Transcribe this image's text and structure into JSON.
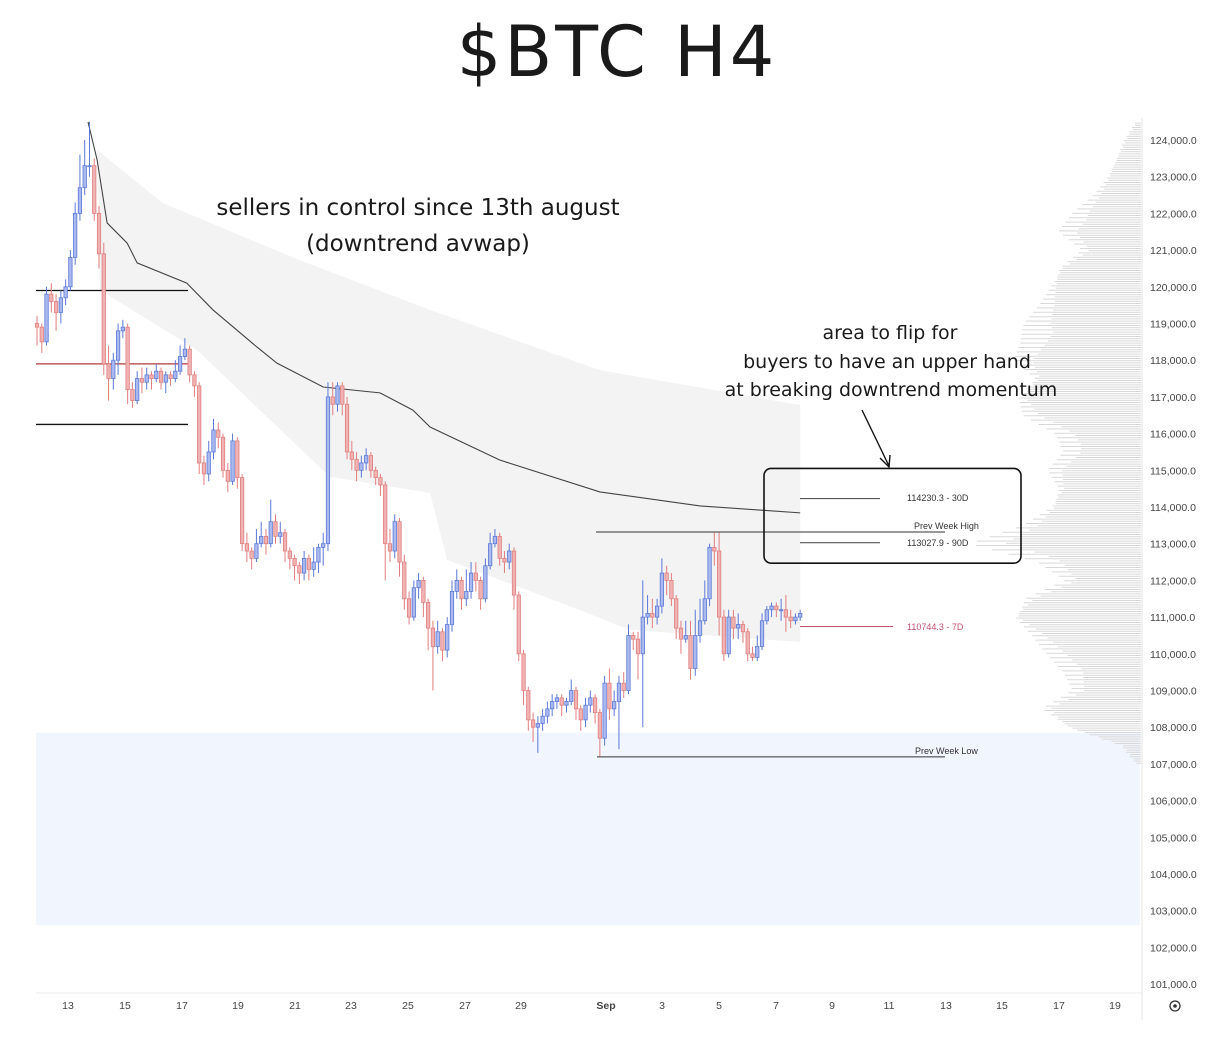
{
  "title": "$BTC H4",
  "annotations": {
    "sellers_line1": "sellers in control since 13th august",
    "sellers_line2": "(downtrend avwap)",
    "flip_line1": "area to flip for",
    "flip_line2": "buyers to have an upper hand",
    "flip_line3": "at breaking downtrend momentum"
  },
  "chart_data": {
    "type": "candlestick",
    "timeframe": "H4",
    "ylim": [
      100600,
      124800
    ],
    "y_ticks": [
      "124,000.0",
      "123,000.0",
      "122,000.0",
      "121,000.0",
      "120,000.0",
      "119,000.0",
      "118,000.0",
      "117,000.0",
      "116,000.0",
      "115,000.0",
      "114,000.0",
      "113,000.0",
      "112,000.0",
      "111,000.0",
      "110,000.0",
      "109,000.0",
      "108,000.0",
      "107,000.0",
      "106,000.0",
      "105,000.0",
      "104,000.0",
      "103,000.0",
      "102,000.0",
      "101,000.0"
    ],
    "x_ticks": [
      "13",
      "15",
      "17",
      "19",
      "21",
      "23",
      "25",
      "27",
      "29",
      "Sep",
      "3",
      "5",
      "7",
      "9",
      "11",
      "13",
      "15",
      "17",
      "19"
    ],
    "colors": {
      "up": "#5b78d6",
      "up_fill": "#aab9ee",
      "down": "#e07e7e",
      "down_fill": "#f0b3b3",
      "avwap": "#444444",
      "band": "#f3f3f3",
      "zone": "#f1f5fd",
      "seven_day": "#c0506e"
    },
    "candles_ohlc": [
      [
        119000,
        119200,
        118400,
        118900
      ],
      [
        118900,
        119000,
        118200,
        118500
      ],
      [
        118500,
        120000,
        118400,
        119800
      ],
      [
        119800,
        120100,
        119300,
        119600
      ],
      [
        119600,
        119800,
        118800,
        119300
      ],
      [
        119300,
        119900,
        119000,
        119700
      ],
      [
        119700,
        120200,
        119500,
        120000
      ],
      [
        120000,
        121000,
        119900,
        120800
      ],
      [
        120800,
        122300,
        120600,
        122000
      ],
      [
        122000,
        123600,
        121800,
        122700
      ],
      [
        122700,
        124000,
        122500,
        123300
      ],
      [
        123300,
        124500,
        123000,
        123300
      ],
      [
        123300,
        123500,
        121800,
        122000
      ],
      [
        122000,
        122200,
        120500,
        120900
      ],
      [
        120900,
        121200,
        117600,
        117900
      ],
      [
        117900,
        118400,
        116900,
        117500
      ],
      [
        117500,
        118200,
        117200,
        118000
      ],
      [
        118000,
        119000,
        117600,
        118800
      ],
      [
        118800,
        119100,
        118600,
        118900
      ],
      [
        118900,
        119000,
        116800,
        117200
      ],
      [
        117200,
        117400,
        116700,
        116900
      ],
      [
        116900,
        117700,
        116800,
        117500
      ],
      [
        117500,
        117800,
        117100,
        117400
      ],
      [
        117400,
        117800,
        117200,
        117600
      ],
      [
        117600,
        117700,
        117200,
        117500
      ],
      [
        117500,
        117900,
        117400,
        117700
      ],
      [
        117700,
        117800,
        117200,
        117400
      ],
      [
        117400,
        117700,
        117100,
        117600
      ],
      [
        117600,
        117700,
        117300,
        117500
      ],
      [
        117500,
        118000,
        117400,
        117700
      ],
      [
        117700,
        118400,
        117600,
        118100
      ],
      [
        118100,
        118600,
        118000,
        118300
      ],
      [
        118300,
        118400,
        117400,
        117600
      ],
      [
        117600,
        117700,
        117000,
        117300
      ],
      [
        117300,
        117400,
        114900,
        115200
      ],
      [
        115200,
        115400,
        114600,
        114900
      ],
      [
        114900,
        115800,
        114700,
        115500
      ],
      [
        115500,
        116400,
        115300,
        116100
      ],
      [
        116100,
        116300,
        115600,
        115900
      ],
      [
        115900,
        116000,
        114800,
        115000
      ],
      [
        115000,
        115200,
        114400,
        114700
      ],
      [
        114700,
        116000,
        114600,
        115800
      ],
      [
        115800,
        115900,
        114500,
        114800
      ],
      [
        114800,
        114900,
        112800,
        113000
      ],
      [
        113000,
        113300,
        112500,
        112800
      ],
      [
        112800,
        112900,
        112300,
        112600
      ],
      [
        112600,
        113400,
        112500,
        113000
      ],
      [
        113000,
        113600,
        112900,
        113200
      ],
      [
        113200,
        113400,
        112700,
        113000
      ],
      [
        113000,
        114200,
        112900,
        113600
      ],
      [
        113600,
        113800,
        113000,
        113200
      ],
      [
        113200,
        113600,
        113000,
        113300
      ],
      [
        113300,
        113400,
        112500,
        112800
      ],
      [
        112800,
        112900,
        112300,
        112600
      ],
      [
        112600,
        112700,
        112000,
        112400
      ],
      [
        112400,
        112500,
        111900,
        112200
      ],
      [
        112200,
        112800,
        112000,
        112600
      ],
      [
        112600,
        112700,
        112000,
        112300
      ],
      [
        112300,
        112900,
        112100,
        112500
      ],
      [
        112500,
        113000,
        112200,
        112900
      ],
      [
        112900,
        113300,
        112400,
        113000
      ],
      [
        113000,
        117400,
        112800,
        117000
      ],
      [
        117000,
        117400,
        116500,
        116800
      ],
      [
        116800,
        117400,
        116600,
        117300
      ],
      [
        117300,
        117400,
        116500,
        116800
      ],
      [
        116800,
        117000,
        115300,
        115500
      ],
      [
        115500,
        115800,
        115000,
        115300
      ],
      [
        115300,
        115500,
        114700,
        115000
      ],
      [
        115000,
        115400,
        114800,
        115200
      ],
      [
        115200,
        115600,
        115000,
        115400
      ],
      [
        115400,
        115500,
        114800,
        115000
      ],
      [
        115000,
        115100,
        114600,
        114800
      ],
      [
        114800,
        114900,
        114300,
        114600
      ],
      [
        114600,
        114700,
        112000,
        113000
      ],
      [
        113000,
        113400,
        112500,
        112800
      ],
      [
        112800,
        113800,
        112600,
        113600
      ],
      [
        113600,
        113700,
        112100,
        112500
      ],
      [
        112500,
        112700,
        111200,
        111500
      ],
      [
        111500,
        111700,
        110800,
        111000
      ],
      [
        111000,
        112000,
        110900,
        111800
      ],
      [
        111800,
        112200,
        111500,
        112000
      ],
      [
        112000,
        112100,
        111000,
        111400
      ],
      [
        111400,
        111500,
        110100,
        110700
      ],
      [
        110700,
        110900,
        109000,
        110200
      ],
      [
        110200,
        110900,
        110000,
        110600
      ],
      [
        110600,
        110700,
        109800,
        110100
      ],
      [
        110100,
        111000,
        109900,
        110800
      ],
      [
        110800,
        112000,
        110600,
        111700
      ],
      [
        111700,
        112300,
        111500,
        112000
      ],
      [
        112000,
        112100,
        111200,
        111500
      ],
      [
        111500,
        112300,
        111300,
        111700
      ],
      [
        111700,
        112500,
        111500,
        112200
      ],
      [
        112200,
        112500,
        111700,
        112000
      ],
      [
        112000,
        112100,
        111200,
        111500
      ],
      [
        111500,
        112600,
        111400,
        112400
      ],
      [
        112400,
        113300,
        112300,
        113000
      ],
      [
        113000,
        113400,
        112900,
        113200
      ],
      [
        113200,
        113300,
        112400,
        112600
      ],
      [
        112600,
        112800,
        112200,
        112500
      ],
      [
        112500,
        113000,
        112300,
        112800
      ],
      [
        112800,
        112900,
        111200,
        111600
      ],
      [
        111600,
        111700,
        109800,
        110000
      ],
      [
        110000,
        110100,
        108600,
        109000
      ],
      [
        109000,
        109100,
        107900,
        108200
      ],
      [
        108200,
        108400,
        107600,
        108000
      ],
      [
        108000,
        108300,
        107300,
        108100
      ],
      [
        108100,
        108500,
        107900,
        108300
      ],
      [
        108300,
        108700,
        108100,
        108500
      ],
      [
        108500,
        108900,
        108300,
        108700
      ],
      [
        108700,
        108900,
        108500,
        108800
      ],
      [
        108800,
        108900,
        108300,
        108600
      ],
      [
        108600,
        108800,
        108400,
        108700
      ],
      [
        108700,
        109300,
        108600,
        109000
      ],
      [
        109000,
        109100,
        108200,
        108500
      ],
      [
        108500,
        108600,
        107900,
        108200
      ],
      [
        108200,
        108800,
        108000,
        108600
      ],
      [
        108600,
        109000,
        108400,
        108800
      ],
      [
        108800,
        108900,
        108100,
        108400
      ],
      [
        108400,
        108500,
        107200,
        107700
      ],
      [
        107700,
        109400,
        107500,
        109200
      ],
      [
        109200,
        109600,
        108200,
        108500
      ],
      [
        108500,
        109000,
        108300,
        108700
      ],
      [
        108700,
        109400,
        107400,
        109200
      ],
      [
        109200,
        109500,
        108800,
        109000
      ],
      [
        109000,
        110800,
        108900,
        110500
      ],
      [
        110500,
        110600,
        110100,
        110400
      ],
      [
        110400,
        110600,
        109300,
        110000
      ],
      [
        110000,
        112000,
        108000,
        111000
      ],
      [
        111000,
        111600,
        110800,
        111100
      ],
      [
        111100,
        111500,
        110700,
        111000
      ],
      [
        111000,
        111500,
        110800,
        111300
      ],
      [
        111300,
        112600,
        111100,
        112200
      ],
      [
        112200,
        112400,
        111600,
        112000
      ],
      [
        112000,
        112200,
        111300,
        111500
      ],
      [
        111500,
        111600,
        110400,
        110700
      ],
      [
        110700,
        110900,
        110000,
        110400
      ],
      [
        110400,
        110900,
        110300,
        110500
      ],
      [
        110500,
        110900,
        109300,
        109600
      ],
      [
        109600,
        111200,
        109400,
        110500
      ],
      [
        110500,
        111500,
        110300,
        110900
      ],
      [
        110900,
        112000,
        110800,
        111500
      ],
      [
        111500,
        113000,
        111300,
        112900
      ],
      [
        112900,
        113300,
        112400,
        112800
      ],
      [
        112800,
        113300,
        110500,
        111000
      ],
      [
        111000,
        111200,
        109800,
        110000
      ],
      [
        110000,
        111200,
        109900,
        111000
      ],
      [
        111000,
        111200,
        110400,
        110700
      ],
      [
        110700,
        111100,
        110400,
        110800
      ],
      [
        110800,
        110900,
        110300,
        110600
      ],
      [
        110600,
        110700,
        109800,
        110000
      ],
      [
        110000,
        110200,
        109800,
        109900
      ],
      [
        109900,
        110500,
        109800,
        110200
      ],
      [
        110200,
        111100,
        110100,
        110900
      ],
      [
        110900,
        111300,
        110800,
        111200
      ],
      [
        111200,
        111400,
        111000,
        111300
      ],
      [
        111300,
        111400,
        111000,
        111200
      ],
      [
        111200,
        111500,
        110900,
        111200
      ],
      [
        111200,
        111600,
        110600,
        111000
      ],
      [
        111000,
        111200,
        110700,
        110900
      ],
      [
        110900,
        111100,
        110800,
        111000
      ],
      [
        111000,
        111200,
        110900,
        111100
      ]
    ],
    "avwap": {
      "candle_index": [
        10.7,
        12.6,
        14.7,
        18.9,
        21,
        31.4,
        36.9,
        46.1,
        50.3,
        60,
        71.9,
        78.8,
        82.4,
        97,
        118,
        139,
        160
      ],
      "price": [
        124490,
        123460,
        121740,
        121190,
        120650,
        120100,
        119370,
        118360,
        117920,
        117270,
        117110,
        116640,
        116180,
        115280,
        114410,
        114030,
        113840
      ]
    },
    "avwap_band": {
      "upper": {
        "candle_index": [
          12.6,
          26.4,
          55,
          82.4,
          118,
          160
        ],
        "price": [
          123730,
          122280,
          120730,
          119370,
          117730,
          116780
        ]
      },
      "lower": {
        "candle_index": [
          13.2,
          33.5,
          61.4,
          82.4,
          86,
          113.8,
          124.3,
          160
        ],
        "price": [
          119910,
          118280,
          114820,
          114380,
          112560,
          111190,
          110650,
          110320
        ]
      }
    },
    "left_levels": [
      {
        "price": 119900,
        "color": "#111111"
      },
      {
        "price": 117900,
        "color": "#b03a3a"
      },
      {
        "price": 116250,
        "color": "#111111"
      }
    ],
    "levels": [
      {
        "label": "114230.3 - 30D",
        "price": 114230.3
      },
      {
        "label": "113027.9 - 90D",
        "price": 113027.9
      },
      {
        "label": "110744.3 - 7D",
        "price": 110744.3
      }
    ],
    "prev_week_high": {
      "label": "Prev Week High",
      "price": 113320
    },
    "prev_week_low": {
      "label": "Prev Week Low",
      "price": 107190
    },
    "demand_zone": {
      "top": 107850,
      "bottom": 102600
    },
    "flip_area": {
      "top": 115050,
      "bottom": 112470
    },
    "volume_profile": {
      "price": [
        107000,
        107500,
        108000,
        108500,
        109000,
        109500,
        110000,
        110500,
        111000,
        111500,
        112000,
        112500,
        113000,
        113500,
        114000,
        114500,
        115000,
        115500,
        116000,
        116500,
        117000,
        117500,
        118000,
        118500,
        119000,
        119500,
        120000,
        120500,
        121000,
        121500,
        122000,
        122500,
        123000,
        123500,
        124000,
        124500
      ],
      "relative_volume": [
        0.03,
        0.12,
        0.45,
        0.6,
        0.4,
        0.45,
        0.55,
        0.65,
        0.78,
        0.7,
        0.45,
        0.6,
        1.0,
        0.7,
        0.55,
        0.5,
        0.55,
        0.45,
        0.5,
        0.7,
        0.75,
        0.65,
        0.75,
        0.7,
        0.68,
        0.6,
        0.55,
        0.5,
        0.35,
        0.48,
        0.4,
        0.28,
        0.2,
        0.15,
        0.1,
        0.03
      ]
    }
  }
}
